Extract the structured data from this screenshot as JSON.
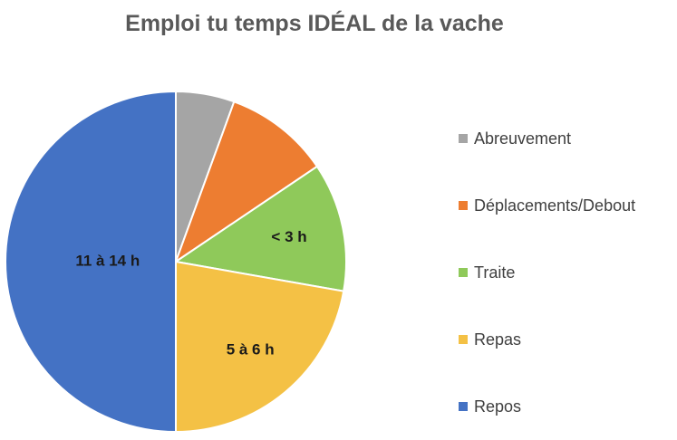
{
  "chart_data": {
    "type": "pie",
    "title": "Emploi tu temps IDÉAL de la vache",
    "slices": [
      {
        "name": "Abreuvement",
        "value": 0.5,
        "color": "#A5A5A5",
        "label": ""
      },
      {
        "name": "Déplacements/Debout",
        "value": 0.9,
        "color": "#ED7D31",
        "label": ""
      },
      {
        "name": "Traite",
        "value": 1.1,
        "color": "#8FC95A",
        "label": "< 3 h"
      },
      {
        "name": "Repas",
        "value": 2.0,
        "color": "#F4C145",
        "label": "5 à 6 h"
      },
      {
        "name": "Repos",
        "value": 4.5,
        "color": "#4472C4",
        "label": "11 à 14 h"
      }
    ],
    "legend_position": "right"
  }
}
